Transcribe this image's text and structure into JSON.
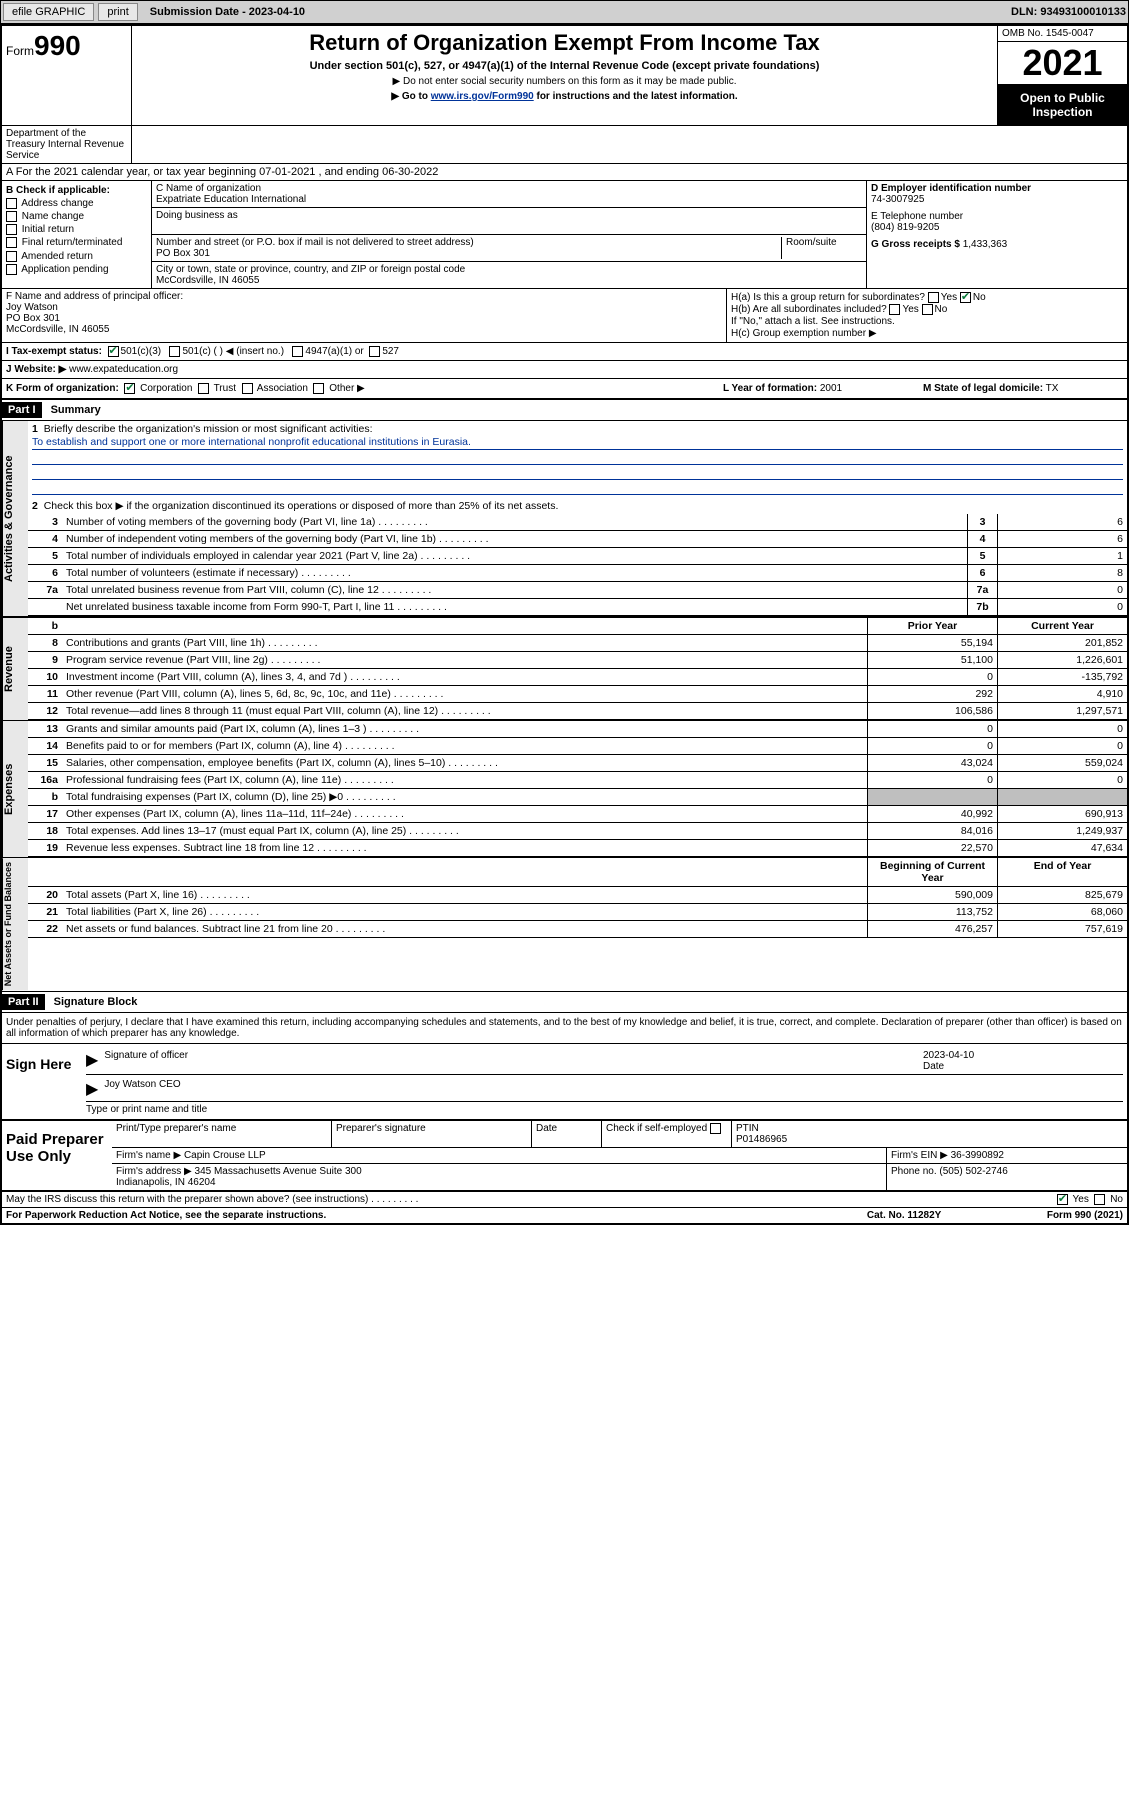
{
  "topbar": {
    "efile": "efile GRAPHIC",
    "print": "print",
    "submission": "Submission Date - 2023-04-10",
    "dln": "DLN: 93493100010133"
  },
  "header": {
    "form_prefix": "Form",
    "form_num": "990",
    "title": "Return of Organization Exempt From Income Tax",
    "sub1": "Under section 501(c), 527, or 4947(a)(1) of the Internal Revenue Code (except private foundations)",
    "sub2": "▶ Do not enter social security numbers on this form as it may be made public.",
    "sub3_pre": "▶ Go to ",
    "sub3_link": "www.irs.gov/Form990",
    "sub3_post": " for instructions and the latest information.",
    "omb": "OMB No. 1545-0047",
    "year": "2021",
    "insp": "Open to Public Inspection",
    "dept": "Department of the Treasury Internal Revenue Service"
  },
  "rowA": "A For the 2021 calendar year, or tax year beginning 07-01-2021   , and ending 06-30-2022",
  "colB": {
    "label": "B Check if applicable:",
    "items": [
      "Address change",
      "Name change",
      "Initial return",
      "Final return/terminated",
      "Amended return",
      "Application pending"
    ]
  },
  "colC": {
    "name_lbl": "C Name of organization",
    "name": "Expatriate Education International",
    "dba_lbl": "Doing business as",
    "addr_lbl": "Number and street (or P.O. box if mail is not delivered to street address)",
    "room_lbl": "Room/suite",
    "addr": "PO Box 301",
    "city_lbl": "City or town, state or province, country, and ZIP or foreign postal code",
    "city": "McCordsville, IN  46055"
  },
  "colD": {
    "ein_lbl": "D Employer identification number",
    "ein": "74-3007925",
    "tel_lbl": "E Telephone number",
    "tel": "(804) 819-9205",
    "gross_lbl": "G Gross receipts $",
    "gross": "1,433,363"
  },
  "rowF": {
    "lbl": "F Name and address of principal officer:",
    "name": "Joy Watson",
    "addr1": "PO Box 301",
    "addr2": "McCordsville, IN  46055",
    "ha": "H(a)  Is this a group return for subordinates?",
    "hb": "H(b)  Are all subordinates included?",
    "hb_note": "If \"No,\" attach a list. See instructions.",
    "hc": "H(c)  Group exemption number ▶",
    "yes": "Yes",
    "no": "No"
  },
  "rowI": {
    "lbl": "I   Tax-exempt status:",
    "opt1": "501(c)(3)",
    "opt2": "501(c) (   ) ◀ (insert no.)",
    "opt3": "4947(a)(1) or",
    "opt4": "527"
  },
  "rowJ": {
    "lbl": "J   Website: ▶",
    "val": "www.expateducation.org"
  },
  "rowK": {
    "lbl": "K Form of organization:",
    "opts": [
      "Corporation",
      "Trust",
      "Association",
      "Other ▶"
    ],
    "l_lbl": "L Year of formation:",
    "l_val": "2001",
    "m_lbl": "M State of legal domicile:",
    "m_val": "TX"
  },
  "part1": {
    "hdr": "Part I",
    "title": "Summary",
    "q1": "Briefly describe the organization's mission or most significant activities:",
    "q1_ans": "To establish and support one or more international nonprofit educational institutions in Eurasia.",
    "q2": "Check this box ▶      if the organization discontinued its operations or disposed of more than 25% of its net assets.",
    "lines_gov": [
      {
        "n": "3",
        "t": "Number of voting members of the governing body (Part VI, line 1a)",
        "b": "3",
        "v": "6"
      },
      {
        "n": "4",
        "t": "Number of independent voting members of the governing body (Part VI, line 1b)",
        "b": "4",
        "v": "6"
      },
      {
        "n": "5",
        "t": "Total number of individuals employed in calendar year 2021 (Part V, line 2a)",
        "b": "5",
        "v": "1"
      },
      {
        "n": "6",
        "t": "Total number of volunteers (estimate if necessary)",
        "b": "6",
        "v": "8"
      },
      {
        "n": "7a",
        "t": "Total unrelated business revenue from Part VIII, column (C), line 12",
        "b": "7a",
        "v": "0"
      },
      {
        "n": "",
        "t": "Net unrelated business taxable income from Form 990-T, Part I, line 11",
        "b": "7b",
        "v": "0"
      }
    ],
    "hdr_prior": "Prior Year",
    "hdr_curr": "Current Year",
    "rev": [
      {
        "n": "8",
        "t": "Contributions and grants (Part VIII, line 1h)",
        "p": "55,194",
        "c": "201,852"
      },
      {
        "n": "9",
        "t": "Program service revenue (Part VIII, line 2g)",
        "p": "51,100",
        "c": "1,226,601"
      },
      {
        "n": "10",
        "t": "Investment income (Part VIII, column (A), lines 3, 4, and 7d )",
        "p": "0",
        "c": "-135,792"
      },
      {
        "n": "11",
        "t": "Other revenue (Part VIII, column (A), lines 5, 6d, 8c, 9c, 10c, and 11e)",
        "p": "292",
        "c": "4,910"
      },
      {
        "n": "12",
        "t": "Total revenue—add lines 8 through 11 (must equal Part VIII, column (A), line 12)",
        "p": "106,586",
        "c": "1,297,571"
      }
    ],
    "exp": [
      {
        "n": "13",
        "t": "Grants and similar amounts paid (Part IX, column (A), lines 1–3 )",
        "p": "0",
        "c": "0"
      },
      {
        "n": "14",
        "t": "Benefits paid to or for members (Part IX, column (A), line 4)",
        "p": "0",
        "c": "0"
      },
      {
        "n": "15",
        "t": "Salaries, other compensation, employee benefits (Part IX, column (A), lines 5–10)",
        "p": "43,024",
        "c": "559,024"
      },
      {
        "n": "16a",
        "t": "Professional fundraising fees (Part IX, column (A), line 11e)",
        "p": "0",
        "c": "0"
      },
      {
        "n": "b",
        "t": "Total fundraising expenses (Part IX, column (D), line 25) ▶0",
        "p": "",
        "c": "",
        "grey": true
      },
      {
        "n": "17",
        "t": "Other expenses (Part IX, column (A), lines 11a–11d, 11f–24e)",
        "p": "40,992",
        "c": "690,913"
      },
      {
        "n": "18",
        "t": "Total expenses. Add lines 13–17 (must equal Part IX, column (A), line 25)",
        "p": "84,016",
        "c": "1,249,937"
      },
      {
        "n": "19",
        "t": "Revenue less expenses. Subtract line 18 from line 12",
        "p": "22,570",
        "c": "47,634"
      }
    ],
    "hdr_beg": "Beginning of Current Year",
    "hdr_end": "End of Year",
    "net": [
      {
        "n": "20",
        "t": "Total assets (Part X, line 16)",
        "p": "590,009",
        "c": "825,679"
      },
      {
        "n": "21",
        "t": "Total liabilities (Part X, line 26)",
        "p": "113,752",
        "c": "68,060"
      },
      {
        "n": "22",
        "t": "Net assets or fund balances. Subtract line 21 from line 20",
        "p": "476,257",
        "c": "757,619"
      }
    ]
  },
  "part2": {
    "hdr": "Part II",
    "title": "Signature Block",
    "decl": "Under penalties of perjury, I declare that I have examined this return, including accompanying schedules and statements, and to the best of my knowledge and belief, it is true, correct, and complete. Declaration of preparer (other than officer) is based on all information of which preparer has any knowledge.",
    "sign_here": "Sign Here",
    "sig_officer": "Signature of officer",
    "sig_date": "2023-04-10",
    "date_lbl": "Date",
    "officer_name": "Joy Watson CEO",
    "type_lbl": "Type or print name and title",
    "paid": "Paid Preparer Use Only",
    "prep_name_lbl": "Print/Type preparer's name",
    "prep_sig_lbl": "Preparer's signature",
    "check_lbl": "Check        if self-employed",
    "ptin_lbl": "PTIN",
    "ptin": "P01486965",
    "firm_name_lbl": "Firm's name    ▶",
    "firm_name": "Capin Crouse LLP",
    "firm_ein_lbl": "Firm's EIN ▶",
    "firm_ein": "36-3990892",
    "firm_addr_lbl": "Firm's address ▶",
    "firm_addr": "345 Massachusetts Avenue Suite 300",
    "firm_city": "Indianapolis, IN  46204",
    "phone_lbl": "Phone no.",
    "phone": "(505) 502-2746",
    "discuss": "May the IRS discuss this return with the preparer shown above? (see instructions)",
    "yes": "Yes",
    "no": "No"
  },
  "footer": {
    "pra": "For Paperwork Reduction Act Notice, see the separate instructions.",
    "cat": "Cat. No. 11282Y",
    "form": "Form 990 (2021)"
  },
  "vtabs": {
    "gov": "Activities & Governance",
    "rev": "Revenue",
    "exp": "Expenses",
    "net": "Net Assets or Fund Balances"
  }
}
